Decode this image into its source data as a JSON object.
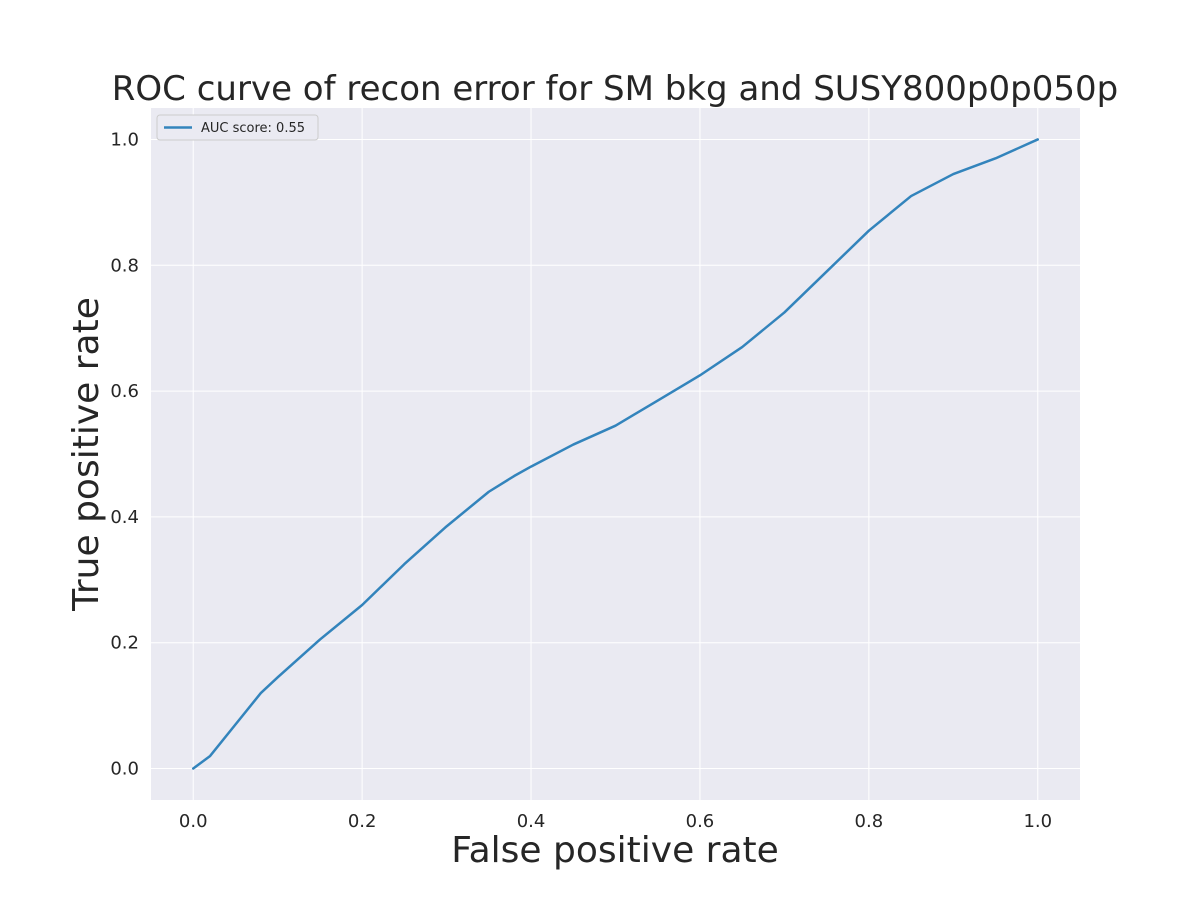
{
  "chart_data": {
    "type": "line",
    "title": "ROC curve of recon error for SM bkg and SUSY800p0p050p",
    "xlabel": "False positive rate",
    "ylabel": "True positive rate",
    "xlim": [
      -0.05,
      1.05
    ],
    "ylim": [
      -0.05,
      1.05
    ],
    "xticks": [
      "0.0",
      "0.2",
      "0.4",
      "0.6",
      "0.8",
      "1.0"
    ],
    "yticks": [
      "0.0",
      "0.2",
      "0.4",
      "0.6",
      "0.8",
      "1.0"
    ],
    "grid": true,
    "legend_position": "top-left",
    "background_color": "#eaeaf2",
    "grid_color": "#ffffff",
    "series": [
      {
        "name": "AUC score: 0.55",
        "color": "#3384bc",
        "x": [
          0.0,
          0.02,
          0.05,
          0.08,
          0.1,
          0.15,
          0.2,
          0.25,
          0.3,
          0.35,
          0.38,
          0.4,
          0.45,
          0.5,
          0.55,
          0.6,
          0.65,
          0.7,
          0.75,
          0.8,
          0.85,
          0.9,
          0.95,
          1.0
        ],
        "y": [
          0.0,
          0.02,
          0.07,
          0.12,
          0.145,
          0.205,
          0.26,
          0.325,
          0.385,
          0.44,
          0.465,
          0.48,
          0.515,
          0.545,
          0.585,
          0.625,
          0.67,
          0.725,
          0.79,
          0.855,
          0.91,
          0.945,
          0.97,
          1.0
        ]
      }
    ]
  }
}
